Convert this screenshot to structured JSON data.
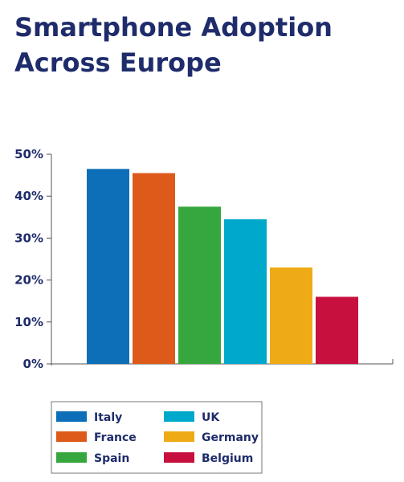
{
  "chart_data": {
    "type": "bar",
    "title": "Smartphone Adoption Across Europe",
    "categories": [
      "Italy",
      "France",
      "Spain",
      "UK",
      "Germany",
      "Belgium"
    ],
    "values": [
      46.5,
      45.5,
      37.5,
      34.5,
      23,
      16
    ],
    "colors": [
      "#0d6fb8",
      "#dd5a1b",
      "#36a73e",
      "#00a9cc",
      "#eeab15",
      "#c8103e"
    ],
    "ylim": [
      0,
      50
    ],
    "y_ticks": [
      0,
      10,
      20,
      30,
      40,
      50
    ],
    "y_tick_labels": [
      "0%",
      "10%",
      "20%",
      "30%",
      "40%",
      "50%"
    ],
    "xlabel": "",
    "ylabel": "",
    "grid": false,
    "legend": {
      "placement": "bottom-left",
      "columns": 2,
      "entries": [
        "Italy",
        "France",
        "Spain",
        "UK",
        "Germany",
        "Belgium"
      ]
    }
  }
}
